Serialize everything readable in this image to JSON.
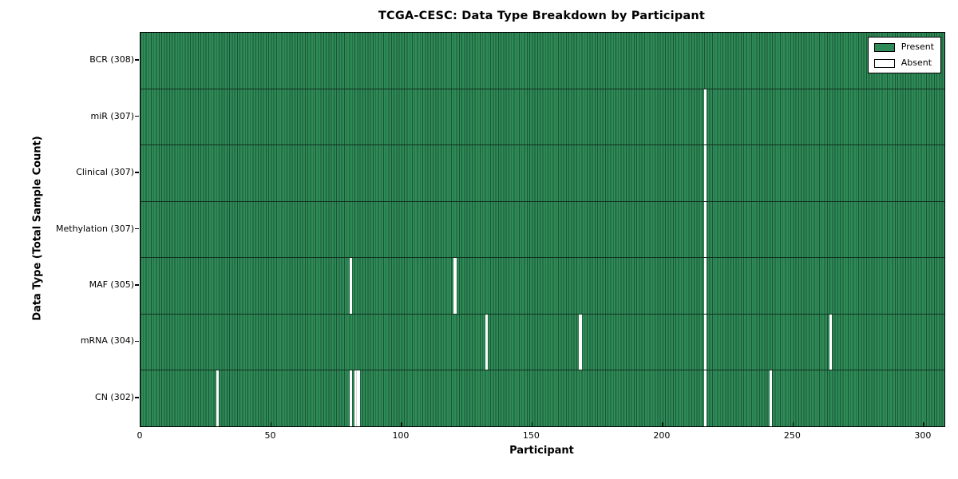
{
  "chart_data": {
    "type": "heatmap",
    "title": "TCGA-CESC: Data Type Breakdown by Participant",
    "xlabel": "Participant",
    "ylabel": "Data Type (Total Sample Count)",
    "n_participants": 308,
    "xlim": [
      0,
      308
    ],
    "x_ticks": [
      0,
      50,
      100,
      150,
      200,
      250,
      300
    ],
    "grid": false,
    "legend": {
      "position": "upper right",
      "entries": [
        {
          "label": "Present",
          "color": "#2e8b57"
        },
        {
          "label": "Absent",
          "color": "#ffffff"
        }
      ]
    },
    "rows": [
      {
        "label": "BCR (308)",
        "data_type": "BCR",
        "total": 308,
        "absent_participants": []
      },
      {
        "label": "miR (307)",
        "data_type": "miR",
        "total": 307,
        "absent_participants": [
          216
        ]
      },
      {
        "label": "Clinical (307)",
        "data_type": "Clinical",
        "total": 307,
        "absent_participants": [
          216
        ]
      },
      {
        "label": "Methylation (307)",
        "data_type": "Methylation",
        "total": 307,
        "absent_participants": [
          216
        ]
      },
      {
        "label": "MAF (305)",
        "data_type": "MAF",
        "total": 305,
        "absent_participants": [
          80,
          120,
          216
        ]
      },
      {
        "label": "mRNA (304)",
        "data_type": "mRNA",
        "total": 304,
        "absent_participants": [
          132,
          168,
          216,
          264
        ]
      },
      {
        "label": "CN (302)",
        "data_type": "CN",
        "total": 302,
        "absent_participants": [
          29,
          80,
          82,
          83,
          216,
          241
        ]
      }
    ],
    "colors": {
      "present": "#2e8b57",
      "bar_edge": "#1c5435",
      "absent": "#ffffff",
      "row_separator": "#11311f",
      "axis": "#000000",
      "background": "#ffffff"
    }
  }
}
